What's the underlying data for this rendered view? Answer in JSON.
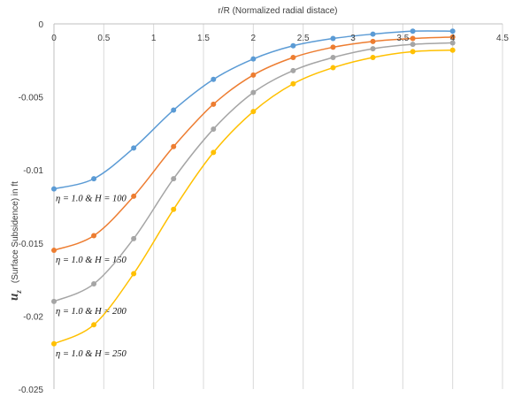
{
  "chart_data": {
    "type": "line",
    "title": "",
    "xlabel": "r/R (Normalized radial distace)",
    "ylabel": {
      "symbol": "u",
      "subscript": "z",
      "text": "(Surface Subsidence) in ft"
    },
    "xlim": [
      0,
      4.5
    ],
    "ylim": [
      -0.025,
      0
    ],
    "x_axis_position": "top",
    "x_ticks": [
      0,
      0.5,
      1,
      1.5,
      2,
      2.5,
      3,
      3.5,
      4,
      4.5
    ],
    "x_tick_labels": [
      "0",
      "0.5",
      "1",
      "1.5",
      "2",
      "2.5",
      "3",
      "3.5",
      "4",
      "4.5"
    ],
    "y_ticks": [
      0,
      -0.005,
      -0.01,
      -0.015,
      -0.02,
      -0.025
    ],
    "y_tick_labels": [
      "0",
      "-0.005",
      "-0.01",
      "-0.015",
      "-0.02",
      "-0.025"
    ],
    "grid": {
      "vertical": true,
      "horizontal": false
    },
    "x": [
      0,
      0.4,
      0.8,
      1.2,
      1.6,
      2.0,
      2.4,
      2.8,
      3.2,
      3.6,
      4.0
    ],
    "series": [
      {
        "label_parts": [
          "η = 1.0 & ",
          "H",
          " = 100"
        ],
        "color": "#5B9BD5",
        "values": [
          -0.0113,
          -0.0106,
          -0.0085,
          -0.0059,
          -0.0038,
          -0.0024,
          -0.0015,
          -0.001,
          -0.0007,
          -0.0005,
          -0.0005
        ]
      },
      {
        "label_parts": [
          "η = 1.0 & ",
          "H",
          " = 150"
        ],
        "color": "#ED7D31",
        "values": [
          -0.0155,
          -0.0145,
          -0.0118,
          -0.0084,
          -0.0055,
          -0.0035,
          -0.0023,
          -0.0016,
          -0.0012,
          -0.001,
          -0.0009
        ]
      },
      {
        "label_parts": [
          "η = 1.0 & ",
          "H",
          " = 200"
        ],
        "color": "#A5A5A5",
        "values": [
          -0.019,
          -0.0178,
          -0.0147,
          -0.0106,
          -0.0072,
          -0.0047,
          -0.0032,
          -0.0023,
          -0.0017,
          -0.0014,
          -0.0013
        ]
      },
      {
        "label_parts": [
          "η = 1.0 & ",
          "H",
          " = 250"
        ],
        "color": "#FFC000",
        "values": [
          -0.0219,
          -0.0206,
          -0.0171,
          -0.0127,
          -0.0088,
          -0.006,
          -0.0041,
          -0.003,
          -0.0023,
          -0.0019,
          -0.0018
        ]
      }
    ]
  }
}
